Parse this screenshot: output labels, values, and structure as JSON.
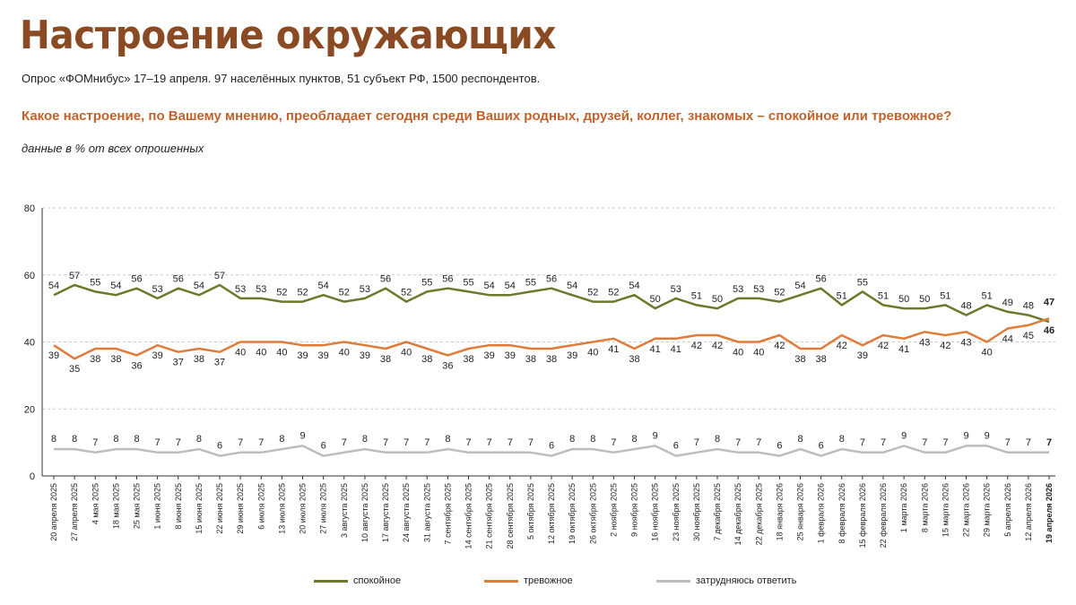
{
  "header": {
    "title": "Настроение окружающих",
    "subtitle": "Опрос «ФОМнибус» 17–19 апреля. 97 населённых пунктов, 51 субъект РФ, 1500 респондентов.",
    "question": "Какое настроение, по Вашему мнению, преобладает сегодня среди Ваших родных, друзей, коллег, знакомых – спокойное или тревожное?",
    "note": "данные в % от всех опрошенных"
  },
  "chart_data": {
    "type": "line",
    "ylim": [
      0,
      80
    ],
    "yticks": [
      0,
      20,
      40,
      60,
      80
    ],
    "grid": "dashed-horizontal",
    "legend_position": "bottom",
    "categories": [
      "20 апреля 2025",
      "27 апреля 2025",
      "4 мая 2025",
      "18 мая 2025",
      "25 мая 2025",
      "1 июня 2025",
      "8 июня 2025",
      "15 июня 2025",
      "22 июня 2025",
      "29 июня 2025",
      "6 июля 2025",
      "13 июля 2025",
      "20 июля 2025",
      "27 июля 2025",
      "3 августа 2025",
      "10 августа 2025",
      "17 августа 2025",
      "24 августа 2025",
      "31 августа 2025",
      "7 сентября 2025",
      "14 сентября 2025",
      "21 сентября 2025",
      "28 сентября 2025",
      "5 октября 2025",
      "12 октября 2025",
      "19 октября 2025",
      "26 октября 2025",
      "2 ноября 2025",
      "9 ноября 2025",
      "16 ноября 2025",
      "23 ноября 2025",
      "30 ноября 2025",
      "7 декабря 2025",
      "14 декабря 2025",
      "22 декабря 2025",
      "18 января 2026",
      "25 января 2026",
      "1 февраля 2026",
      "8 февраля 2026",
      "15 февраля 2026",
      "22 февраля 2026",
      "1 марта 2026",
      "8 марта 2026",
      "15 марта 2026",
      "22 марта 2026",
      "29 марта 2026",
      "5 апреля 2026",
      "12 апреля 2026",
      "19 апреля 2026"
    ],
    "series": [
      {
        "name": "спокойное",
        "color": "#6b7a2a",
        "values": [
          54,
          57,
          55,
          54,
          56,
          53,
          56,
          54,
          57,
          53,
          53,
          52,
          52,
          54,
          52,
          53,
          56,
          52,
          55,
          56,
          55,
          54,
          54,
          55,
          56,
          54,
          52,
          52,
          54,
          50,
          53,
          51,
          50,
          53,
          53,
          52,
          54,
          56,
          51,
          55,
          51,
          50,
          50,
          51,
          48,
          51,
          49,
          48,
          46
        ]
      },
      {
        "name": "тревожное",
        "color": "#e07b3a",
        "values": [
          39,
          35,
          38,
          38,
          36,
          39,
          37,
          38,
          37,
          40,
          40,
          40,
          39,
          39,
          40,
          39,
          38,
          40,
          38,
          36,
          38,
          39,
          39,
          38,
          38,
          39,
          40,
          41,
          38,
          41,
          41,
          42,
          42,
          40,
          40,
          42,
          38,
          38,
          42,
          39,
          42,
          41,
          43,
          42,
          43,
          40,
          44,
          45,
          47
        ]
      },
      {
        "name": "затрудняюсь ответить",
        "color": "#bdbdbd",
        "values": [
          8,
          8,
          7,
          8,
          8,
          7,
          7,
          8,
          6,
          7,
          7,
          8,
          9,
          6,
          7,
          8,
          7,
          7,
          7,
          8,
          7,
          7,
          7,
          7,
          6,
          8,
          8,
          7,
          8,
          9,
          6,
          7,
          8,
          7,
          7,
          6,
          8,
          6,
          8,
          7,
          7,
          9,
          7,
          7,
          9,
          9,
          7,
          7,
          7
        ]
      }
    ]
  }
}
